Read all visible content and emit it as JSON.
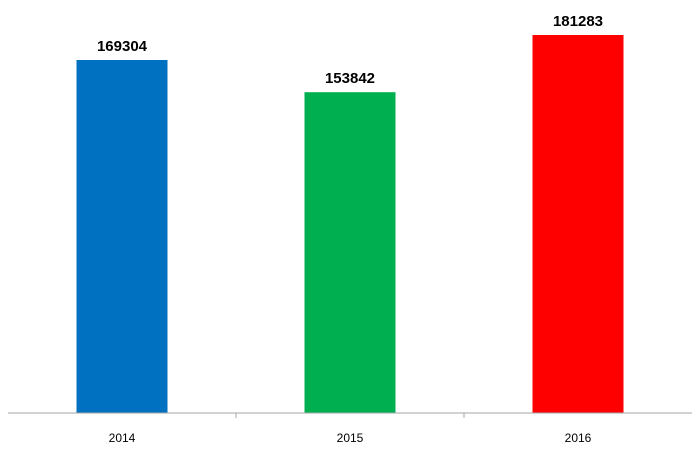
{
  "chart_data": {
    "type": "bar",
    "categories": [
      "2014",
      "2015",
      "2016"
    ],
    "values": [
      169304,
      153842,
      181283
    ],
    "colors": [
      "#0070C0",
      "#00B050",
      "#FF0000"
    ],
    "title": "",
    "xlabel": "",
    "ylabel": "",
    "ylim": [
      0,
      200000
    ],
    "grid": false,
    "legend": "none",
    "axis_color": "#A6A6A6",
    "label_color": "#000000"
  }
}
